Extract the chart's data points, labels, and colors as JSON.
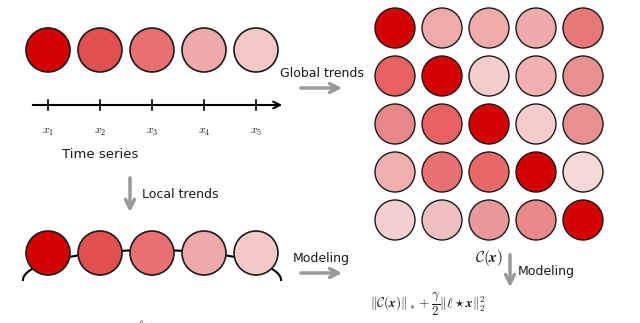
{
  "background": "#ffffff",
  "ts_circle_colors": [
    "#d40000",
    "#e05050",
    "#e87070",
    "#eeaaaa",
    "#f5c8c8"
  ],
  "conv_circle_colors": [
    [
      "#d40000",
      "#f0aaaa",
      "#f0aaaa",
      "#eeaaaa",
      "#e87878"
    ],
    [
      "#e86060",
      "#d40000",
      "#f5cccc",
      "#f0b0b0",
      "#e89090"
    ],
    [
      "#e88888",
      "#e86060",
      "#d40000",
      "#f5cccc",
      "#e89090"
    ],
    [
      "#f0b0b0",
      "#e87070",
      "#e86868",
      "#d40000",
      "#f5d8d8"
    ],
    [
      "#f5d0d0",
      "#f0c0c0",
      "#e89898",
      "#e88888",
      "#d40000"
    ]
  ],
  "lx_circle_colors": [
    "#d40000",
    "#e05050",
    "#e87070",
    "#eeaaaa",
    "#f5c8c8"
  ],
  "ts_labels": [
    "$x_1$",
    "$x_2$",
    "$x_3$",
    "$x_4$",
    "$x_5$"
  ],
  "conv_label": "$\\mathcal{C}(\\boldsymbol{x})$",
  "lx_label": "$\\ell \\star \\boldsymbol{x}$",
  "formula": "$\\|\\mathcal{C}(\\boldsymbol{x})\\|_* + \\dfrac{\\gamma}{2}\\|\\ell \\star \\boldsymbol{x}\\|_2^2$",
  "arrow_color": "#999999",
  "text_color": "#1a1a1a"
}
